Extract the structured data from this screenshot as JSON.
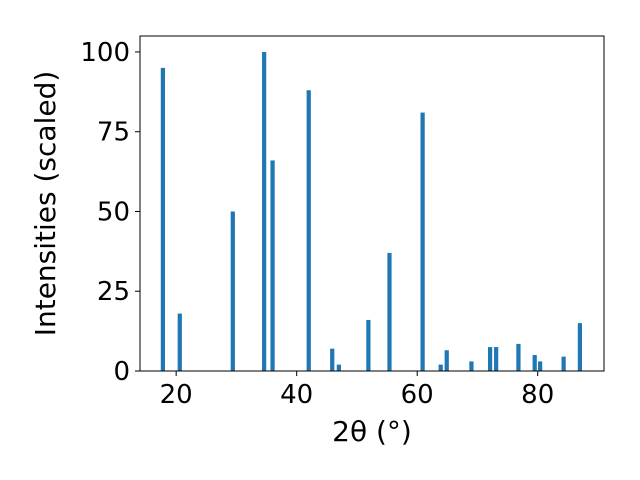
{
  "chart_data": {
    "type": "bar",
    "xlabel": "2θ (°)",
    "ylabel": "Intensities (scaled)",
    "xlim": [
      14,
      91
    ],
    "ylim": [
      0,
      105
    ],
    "xticks": [
      20,
      40,
      60,
      80
    ],
    "yticks": [
      0,
      25,
      50,
      75,
      100
    ],
    "grid": false,
    "bar_color": "#1f77b4",
    "bar_width": 0.7,
    "x": [
      17.8,
      20.6,
      29.4,
      34.6,
      36.0,
      42.0,
      45.9,
      47.0,
      51.9,
      55.4,
      60.9,
      63.9,
      64.9,
      69.0,
      72.1,
      73.1,
      76.8,
      79.5,
      80.4,
      84.3,
      87.0
    ],
    "values": [
      95,
      18,
      50,
      100,
      66,
      88,
      7,
      2,
      16,
      37,
      81,
      2,
      6.5,
      3,
      7.5,
      7.5,
      8.5,
      5,
      3,
      4.5,
      15
    ]
  }
}
